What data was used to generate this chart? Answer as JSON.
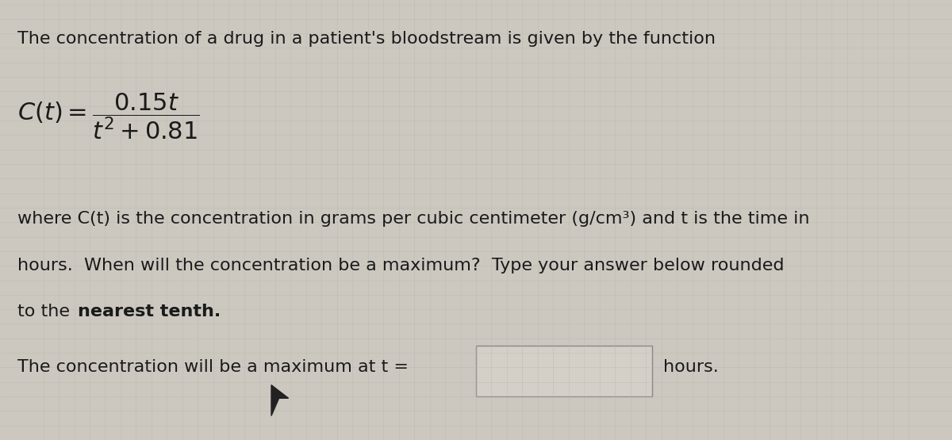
{
  "bg_color": "#ccc8c0",
  "text_color": "#1a1a1a",
  "title_line": "The concentration of a drug in a patient's bloodstream is given by the function",
  "body_line1": "where C(t) is the concentration in grams per cubic centimeter (g/cm³) and t is the time in",
  "body_line2": "hours.  When will the concentration be a maximum?  Type your answer below rounded",
  "body_line3_normal": "to the ",
  "body_line3_bold": "nearest tenth.",
  "answer_line": "The concentration will be a maximum at t =",
  "answer_suffix": "hours.",
  "font_size_title": 16,
  "font_size_body": 16,
  "font_size_formula": 22,
  "box_facecolor": "#d4d0c8",
  "box_edgecolor": "#888888",
  "grid_color": "#b8b4ac",
  "grid_alpha": 0.5
}
